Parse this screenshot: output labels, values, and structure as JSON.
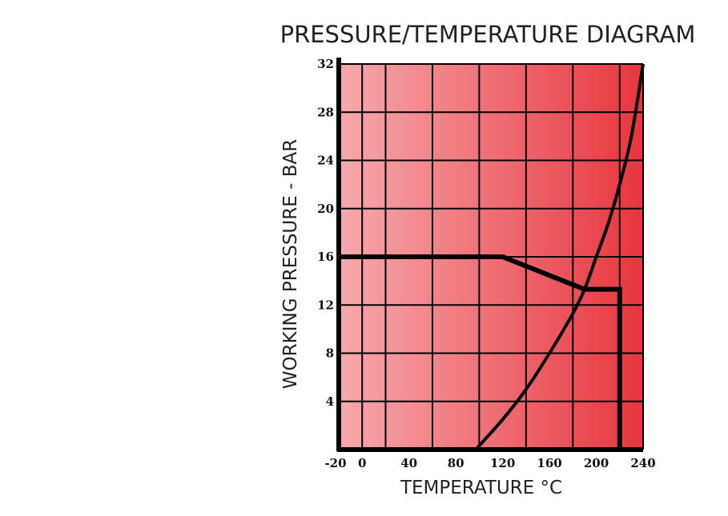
{
  "chart_data": {
    "type": "line",
    "title": "PRESSURE/TEMPERATURE DIAGRAM",
    "xlabel": "TEMPERATURE °C",
    "ylabel": "WORKING PRESSURE - BAR",
    "xlim": [
      -20,
      240
    ],
    "ylim": [
      0,
      32
    ],
    "x_ticks": [
      -20,
      0,
      40,
      80,
      120,
      160,
      200,
      240
    ],
    "x_tick_labels": [
      "-20",
      "0",
      "40",
      "80",
      "120",
      "160",
      "200",
      "240"
    ],
    "y_ticks": [
      4,
      8,
      12,
      16,
      20,
      24,
      28,
      32
    ],
    "y_tick_labels": [
      "4",
      "8",
      "12",
      "16",
      "20",
      "24",
      "28",
      "32"
    ],
    "x_grid": [
      0,
      20,
      60,
      100,
      140,
      180,
      220,
      240
    ],
    "y_grid": [
      4,
      8,
      12,
      16,
      20,
      24,
      28,
      32
    ],
    "grid": true,
    "background_gradient": [
      "#f5aaad",
      "#e8353e"
    ],
    "series": [
      {
        "x": [
          -20,
          120,
          190,
          220,
          220
        ],
        "y": [
          16,
          16,
          13.3,
          13.3,
          0
        ],
        "color": "#000000"
      },
      {
        "x": [
          97,
          120,
          140,
          160,
          180,
          190,
          200,
          210,
          220,
          230,
          240
        ],
        "y": [
          0,
          2.5,
          5.0,
          8.0,
          11.3,
          13.3,
          16.0,
          18.7,
          22.0,
          26.0,
          32.0
        ],
        "color": "#000000"
      }
    ]
  }
}
